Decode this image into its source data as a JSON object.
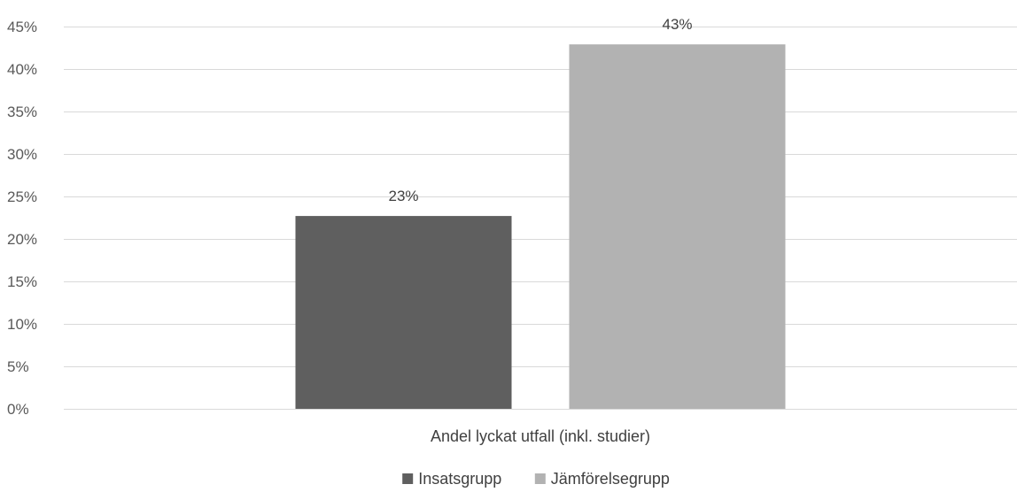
{
  "chart_data": {
    "type": "bar",
    "categories": [
      "Andel lyckat utfall (inkl. studier)"
    ],
    "series": [
      {
        "name": "Insatsgrupp",
        "values": [
          0.227
        ],
        "label": "23%",
        "color": "#5f5f5f"
      },
      {
        "name": "Jämförelsegrupp",
        "values": [
          0.429
        ],
        "label": "43%",
        "color": "#b2b2b2"
      }
    ],
    "ylim": [
      0,
      0.45
    ],
    "yticks": [
      0,
      0.05,
      0.1,
      0.15,
      0.2,
      0.25,
      0.3,
      0.35,
      0.4,
      0.45
    ],
    "ytick_labels": [
      "0%",
      "5%",
      "10%",
      "15%",
      "20%",
      "25%",
      "30%",
      "35%",
      "40%",
      "45%"
    ],
    "grid": true,
    "legend": "bottom"
  }
}
